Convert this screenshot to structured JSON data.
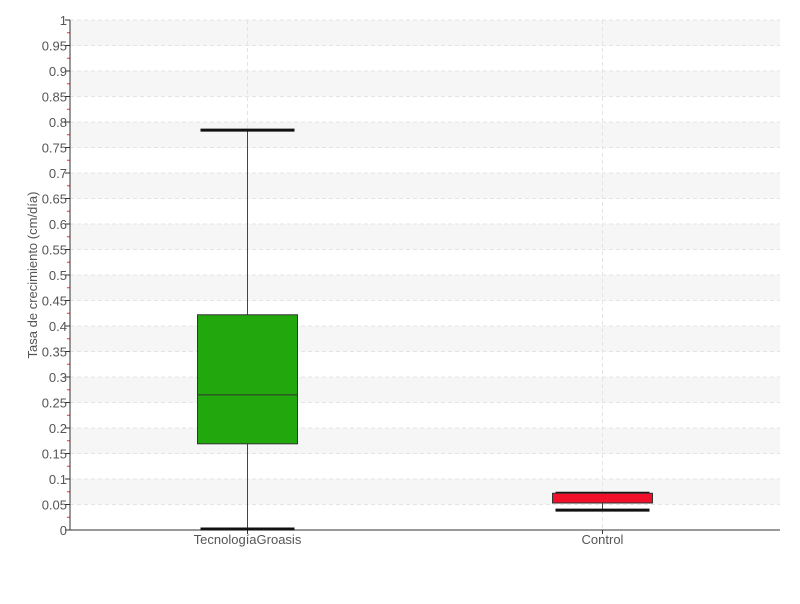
{
  "chart_data": {
    "type": "box",
    "title": "",
    "xlabel": "",
    "ylabel": "Tasa de crecimiento (cm/día)",
    "ylim": [
      0,
      1
    ],
    "yticks": [
      "0",
      "0.05",
      "0.1",
      "0.15",
      "0.2",
      "0.25",
      "0.3",
      "0.35",
      "0.4",
      "0.45",
      "0.5",
      "0.55",
      "0.6",
      "0.65",
      "0.7",
      "0.75",
      "0.8",
      "0.85",
      "0.9",
      "0.95",
      "1"
    ],
    "grid": true,
    "categories": [
      "TecnologíaGroasis",
      "Control"
    ],
    "boxes": [
      {
        "category": "TecnologíaGroasis",
        "min": 0.002,
        "q1": 0.169,
        "median": 0.265,
        "q3": 0.422,
        "max": 0.784,
        "color": "#22a80c"
      },
      {
        "category": "Control",
        "min": 0.039,
        "q1": 0.053,
        "median": 0.053,
        "q3": 0.072,
        "max": 0.072,
        "color": "#f0102a"
      }
    ]
  }
}
